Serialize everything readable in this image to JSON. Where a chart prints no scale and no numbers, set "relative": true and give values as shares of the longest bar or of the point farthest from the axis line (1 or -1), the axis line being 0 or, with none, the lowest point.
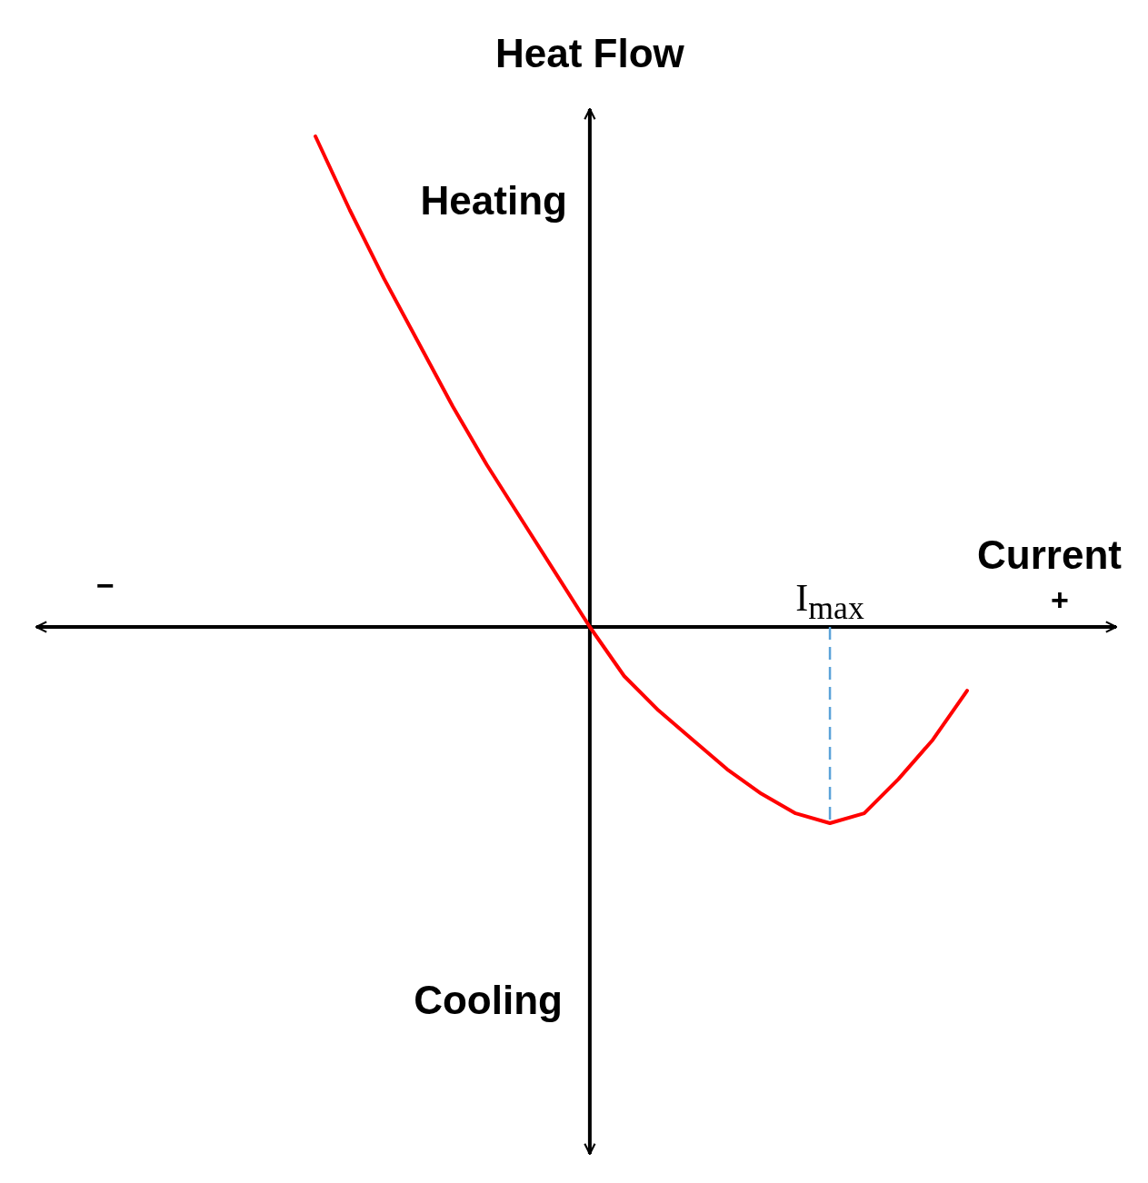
{
  "chart_data": {
    "type": "line",
    "relative": true,
    "xlabel": "Current",
    "ylabel": "Heat Flow",
    "categories": [
      null,
      null,
      null,
      null,
      null,
      null,
      null,
      null,
      null,
      null,
      null,
      null,
      null,
      null,
      null,
      null,
      null,
      null,
      null,
      null
    ],
    "series": [
      {
        "color": "#ff0000",
        "values": [
          1,
          0.85,
          0.71,
          0.58,
          0.45,
          0.33,
          0.22,
          0.11,
          0,
          -0.1,
          -0.17,
          -0.23,
          -0.29,
          -0.34,
          -0.38,
          -0.4,
          -0.38,
          -0.31,
          -0.23,
          -0.13
        ]
      }
    ],
    "annotations": [
      "Heating",
      "Cooling",
      "−",
      "+",
      {
        "text": "I$_{max}$",
        "y": -0.4
      }
    ]
  }
}
